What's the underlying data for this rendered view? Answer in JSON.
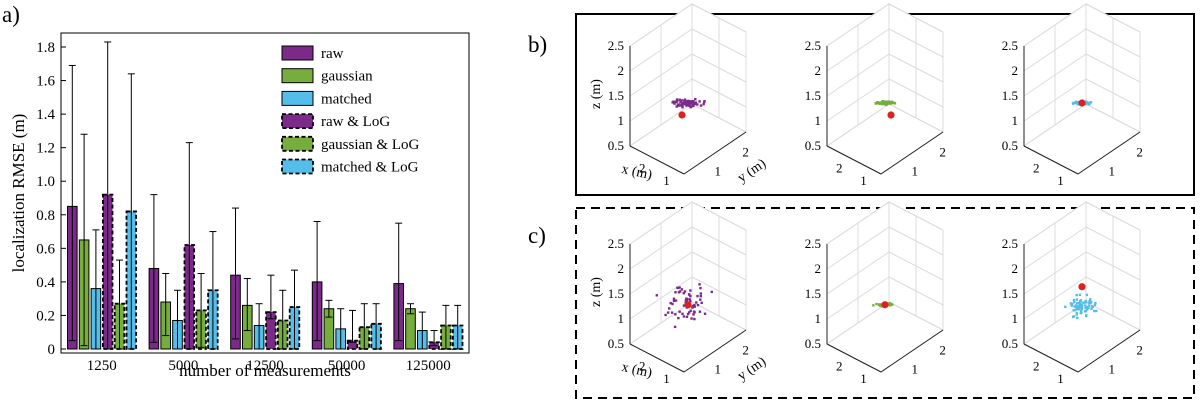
{
  "colors": {
    "raw": "#7b2a8a",
    "gaussian": "#76ad3c",
    "matched": "#55bde9",
    "marker": "#e02020"
  },
  "chart_data": [
    {
      "panel_label": "a)",
      "type": "bar",
      "xlabel": "number of measurements",
      "ylabel": "localization RMSE (m)",
      "ylim": [
        0,
        1.9
      ],
      "yticks": [
        "0",
        "0.2",
        "0.4",
        "0.6",
        "0.8",
        "1.0",
        "1.2",
        "1.4",
        "1.6",
        "1.8"
      ],
      "categories": [
        "1250",
        "5000",
        "12500",
        "50000",
        "125000"
      ],
      "legend_position": "top-right",
      "series": [
        {
          "name": "raw",
          "color_key": "raw",
          "dashed": false,
          "values": [
            0.85,
            0.48,
            0.44,
            0.4,
            0.39
          ],
          "err_low": [
            0.05,
            0.04,
            0.06,
            0.05,
            0.05
          ],
          "err_high": [
            1.69,
            0.92,
            0.84,
            0.76,
            0.75
          ]
        },
        {
          "name": "gaussian",
          "color_key": "gaussian",
          "dashed": false,
          "values": [
            0.65,
            0.28,
            0.26,
            0.24,
            0.24
          ],
          "err_low": [
            0.02,
            0.08,
            0.11,
            0.19,
            0.21
          ],
          "err_high": [
            1.28,
            0.45,
            0.42,
            0.29,
            0.27
          ]
        },
        {
          "name": "matched",
          "color_key": "matched",
          "dashed": false,
          "values": [
            0.36,
            0.17,
            0.14,
            0.12,
            0.11
          ],
          "err_low": [
            0.0,
            0.0,
            0.0,
            0.0,
            0.0
          ],
          "err_high": [
            0.71,
            0.35,
            0.27,
            0.24,
            0.22
          ]
        },
        {
          "name": "raw & LoG",
          "color_key": "raw",
          "dashed": true,
          "values": [
            0.92,
            0.62,
            0.22,
            0.05,
            0.04
          ],
          "err_low": [
            0.0,
            0.0,
            0.18,
            0.04,
            0.02
          ],
          "err_high": [
            1.83,
            1.23,
            0.44,
            0.23,
            0.11
          ]
        },
        {
          "name": "gaussian & LoG",
          "color_key": "gaussian",
          "dashed": true,
          "values": [
            0.27,
            0.23,
            0.17,
            0.13,
            0.14
          ],
          "err_low": [
            0.0,
            0.01,
            0.0,
            0.0,
            0.0
          ],
          "err_high": [
            0.53,
            0.45,
            0.35,
            0.27,
            0.26
          ]
        },
        {
          "name": "matched & LoG",
          "color_key": "matched",
          "dashed": true,
          "values": [
            0.82,
            0.35,
            0.25,
            0.15,
            0.14
          ],
          "err_low": [
            0.0,
            0.0,
            0.0,
            0.0,
            0.0
          ],
          "err_high": [
            1.64,
            0.7,
            0.47,
            0.27,
            0.26
          ]
        }
      ]
    },
    {
      "panel_label": "b)",
      "type": "scatter",
      "subplots": 3,
      "zlabel": "z (m)",
      "xlabel": "x (m)",
      "ylabel": "y (m)",
      "zticks": [
        "0.5",
        "1",
        "1.5",
        "2",
        "2.5"
      ],
      "xticks": [
        "2",
        "1"
      ],
      "yticks": [
        "1",
        "2"
      ],
      "series_colors": [
        "raw",
        "gaussian",
        "matched"
      ],
      "spread": [
        "medium",
        "small",
        "small"
      ],
      "center_z": 1.7,
      "true_position": {
        "z": 1.6
      }
    },
    {
      "panel_label": "c)",
      "type": "scatter",
      "subplots": 3,
      "zlabel": "z (m)",
      "xlabel": "x (m)",
      "ylabel": "y (m)",
      "zticks": [
        "0.5",
        "1",
        "1.5",
        "2",
        "2.5"
      ],
      "xticks": [
        "2",
        "1"
      ],
      "yticks": [
        "1",
        "2"
      ],
      "series_colors": [
        "raw",
        "gaussian",
        "matched"
      ],
      "spread": [
        "large",
        "small",
        "medium"
      ],
      "center_z": 1.6,
      "true_position": {
        "z": 1.62
      }
    }
  ]
}
